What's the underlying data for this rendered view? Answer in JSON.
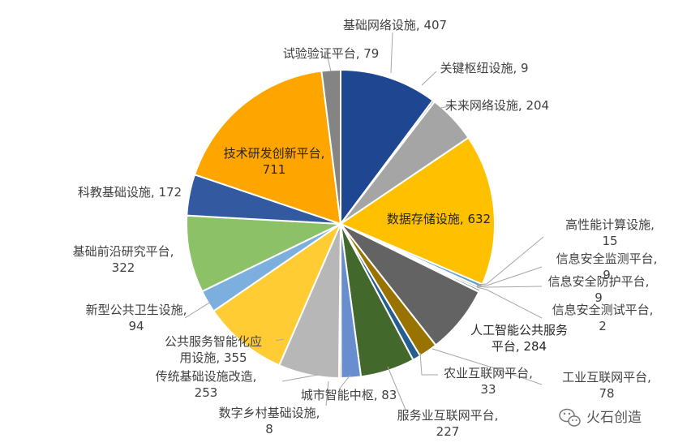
{
  "chart_data": {
    "type": "pie",
    "title": "",
    "start_angle_deg": 0,
    "direction": "clockwise",
    "slices": [
      {
        "label": "基础网络设施",
        "value": 407,
        "color": "#1f4690"
      },
      {
        "label": "关键枢纽设施",
        "value": 9,
        "color": "#9e9e9e"
      },
      {
        "label": "未来网络设施",
        "value": 204,
        "color": "#a5a5a5"
      },
      {
        "label": "数据存储设施",
        "value": 632,
        "color": "#ffc000"
      },
      {
        "label": "高性能计算设施",
        "value": 15,
        "color": "#5b9bd5"
      },
      {
        "label": "信息安全监测平台",
        "value": 9,
        "color": "#70ad47"
      },
      {
        "label": "信息安全防护平台",
        "value": 9,
        "color": "#264478"
      },
      {
        "label": "信息安全测试平台",
        "value": 2,
        "color": "#9e480e"
      },
      {
        "label": "人工智能公共服务平台",
        "value": 284,
        "color": "#636363"
      },
      {
        "label": "工业互联网平台",
        "value": 78,
        "color": "#997300"
      },
      {
        "label": "农业互联网平台",
        "value": 33,
        "color": "#255e91"
      },
      {
        "label": "服务业互联网平台",
        "value": 227,
        "color": "#43682b"
      },
      {
        "label": "城市智能中枢",
        "value": 83,
        "color": "#698ed0"
      },
      {
        "label": "数字乡村基础设施",
        "value": 8,
        "color": "#f1975a"
      },
      {
        "label": "传统基础设施改造",
        "value": 253,
        "color": "#b7b7b7"
      },
      {
        "label": "公共服务智能化应用设施",
        "value": 355,
        "color": "#ffcd33"
      },
      {
        "label": "新型公共卫生设施",
        "value": 94,
        "color": "#7cafdd"
      },
      {
        "label": "基础前沿研究平台",
        "value": 322,
        "color": "#8cc168"
      },
      {
        "label": "科教基础设施",
        "value": 172,
        "color": "#335aa1"
      },
      {
        "label": "技术研发创新平台",
        "value": 711,
        "color": "#ffa500"
      },
      {
        "label": "试验验证平台",
        "value": 79,
        "color": "#848484"
      }
    ],
    "labels": [
      {
        "lines": [
          "基础网络设施, 407"
        ]
      },
      {
        "lines": [
          "关键枢纽设施, 9"
        ]
      },
      {
        "lines": [
          "未来网络设施, 204"
        ]
      },
      {
        "lines": [
          "数据存储设施, 632"
        ]
      },
      {
        "lines": [
          "高性能计算设施,",
          "15"
        ]
      },
      {
        "lines": [
          "信息安全监测平台,",
          "9"
        ]
      },
      {
        "lines": [
          "信息安全防护平台,",
          "9"
        ]
      },
      {
        "lines": [
          "信息安全测试平台,",
          "2"
        ]
      },
      {
        "lines": [
          "人工智能公共服务",
          "平台, 284"
        ]
      },
      {
        "lines": [
          "工业互联网平台,",
          "78"
        ]
      },
      {
        "lines": [
          "农业互联网平台,",
          "33"
        ]
      },
      {
        "lines": [
          "服务业互联网平台,",
          "227"
        ]
      },
      {
        "lines": [
          "城市智能中枢, 83"
        ]
      },
      {
        "lines": [
          "数字乡村基础设施,",
          "8"
        ]
      },
      {
        "lines": [
          "传统基础设施改造,",
          "253"
        ]
      },
      {
        "lines": [
          "公共服务智能化应",
          "用设施, 355"
        ]
      },
      {
        "lines": [
          "新型公共卫生设施,",
          "94"
        ]
      },
      {
        "lines": [
          "基础前沿研究平台,",
          "322"
        ]
      },
      {
        "lines": [
          "科教基础设施, 172"
        ]
      },
      {
        "lines": [
          "技术研发创新平台,",
          "711"
        ]
      },
      {
        "lines": [
          "试验验证平台, 79"
        ]
      }
    ]
  },
  "watermark": {
    "text": "火石创造",
    "icon": "wechat-icon"
  }
}
